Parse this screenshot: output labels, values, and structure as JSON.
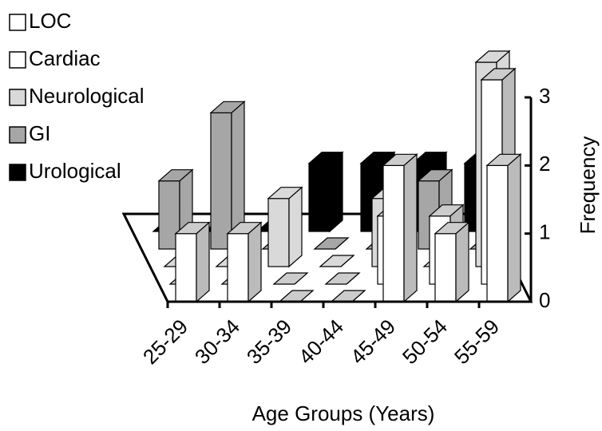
{
  "chart_data": {
    "type": "bar3d",
    "categories": [
      "25-29",
      "30-34",
      "35-39",
      "40-44",
      "45-49",
      "50-54",
      "55-59"
    ],
    "series": [
      {
        "name": "LOC",
        "color": "#ffffff",
        "values": [
          1,
          1,
          0,
          0,
          2,
          1,
          2
        ]
      },
      {
        "name": "Cardiac",
        "color": "#ffffff",
        "values": [
          0,
          0,
          0,
          0,
          1,
          1,
          3
        ]
      },
      {
        "name": "Neurological",
        "color": "#d9d9d9",
        "values": [
          0,
          0,
          1,
          0,
          1,
          0,
          3
        ]
      },
      {
        "name": "GI",
        "color": "#a6a6a6",
        "values": [
          1,
          2,
          0,
          0,
          0,
          1,
          0
        ]
      },
      {
        "name": "Urological",
        "color": "#000000",
        "values": [
          0,
          0,
          0,
          1,
          1,
          1,
          1
        ]
      }
    ],
    "x_label": "Age Groups (Years)",
    "y_label": "Frequency",
    "ylim": [
      0,
      3
    ],
    "yticks": [
      0,
      1,
      2,
      3
    ],
    "legend": "upper left"
  }
}
